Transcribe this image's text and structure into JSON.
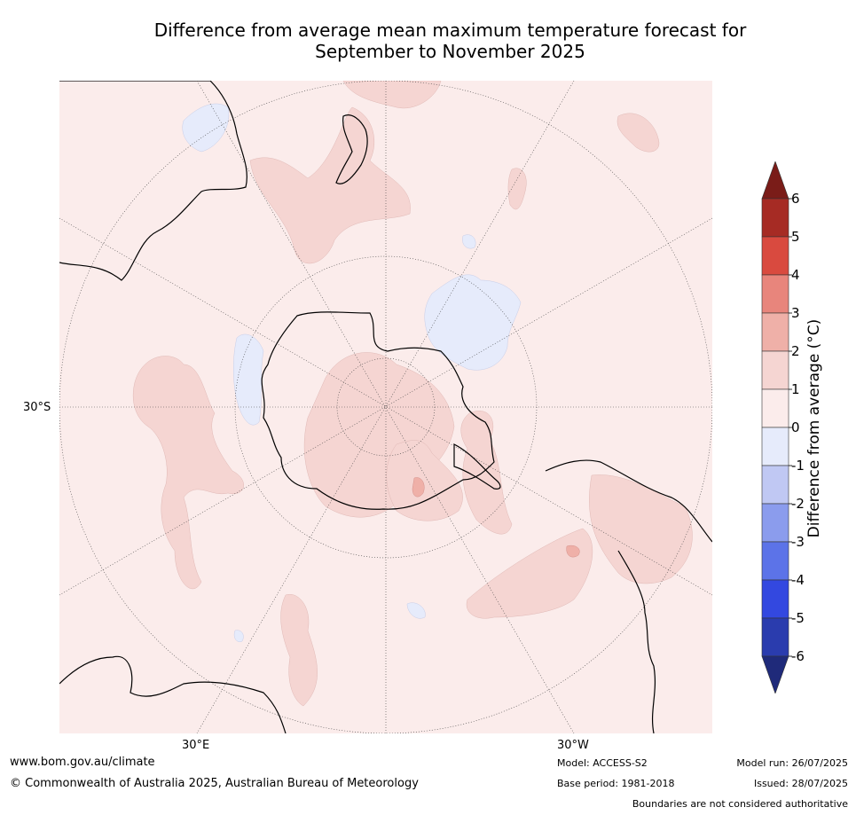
{
  "title": {
    "line1": "Difference from average mean maximum temperature forecast for",
    "line2": "September to November 2025"
  },
  "axis_labels": {
    "left": "30°S",
    "bottom_left": "30°E",
    "bottom_right": "30°W"
  },
  "colorbar": {
    "title": "Difference from average (°C)",
    "ticks": [
      "6",
      "5",
      "4",
      "3",
      "2",
      "1",
      "0",
      "-1",
      "-2",
      "-3",
      "-4",
      "-5",
      "-6"
    ],
    "colors": [
      "#7a1c18",
      "#a62b24",
      "#d94a3f",
      "#e8857c",
      "#efb0a8",
      "#f5d5d2",
      "#fbeceb",
      "#e6ebfb",
      "#c0c8f3",
      "#8b9ced",
      "#5c73e8",
      "#3348e0",
      "#2a3cae",
      "#1f2a7a"
    ]
  },
  "map": {
    "background_color": "#fbeceb",
    "warm_patch_color": "#f5d5d2",
    "hot_patch_color": "#efb0a8",
    "cool_patch_color": "#e6ebfb"
  },
  "footer": {
    "website": "www.bom.gov.au/climate",
    "copyright": "© Commonwealth of Australia 2025, Australian Bureau of Meteorology",
    "model": "Model: ACCESS-S2",
    "base_period": "Base period: 1981-2018",
    "model_run": "Model run: 26/07/2025",
    "issued": "Issued: 28/07/2025",
    "disclaimer": "Boundaries are not considered authoritative"
  }
}
